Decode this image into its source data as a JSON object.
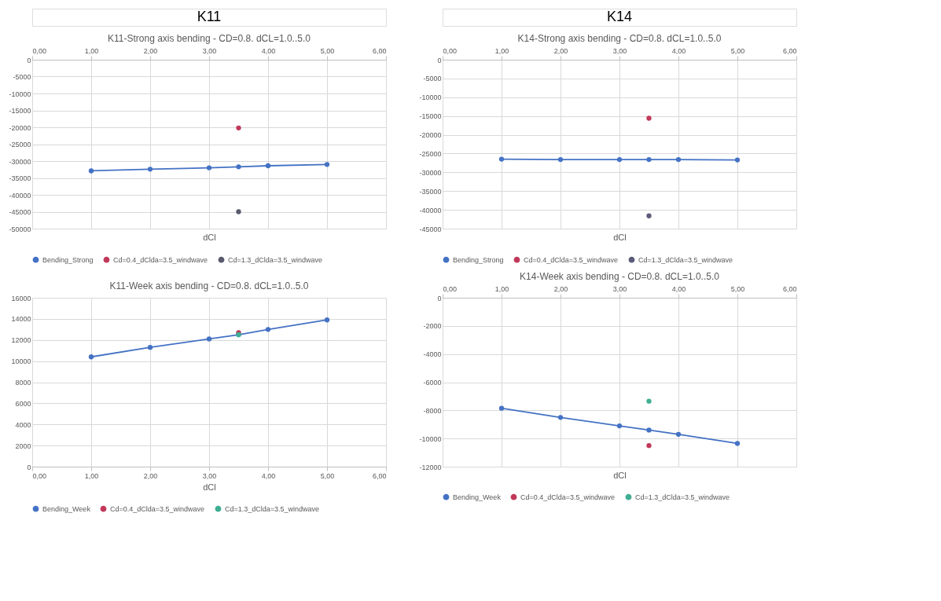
{
  "chart_data": [
    {
      "type": "line",
      "title": "K11-Strong axis bending - CD=0.8. dCL=1.0..5.0",
      "annotations": [
        "K11"
      ],
      "xlabel": "dCl",
      "xlim": [
        0,
        6
      ],
      "xticks": [
        {
          "value": 0,
          "label": "0,00"
        },
        {
          "value": 1,
          "label": "1,00"
        },
        {
          "value": 2,
          "label": "2,00"
        },
        {
          "value": 3,
          "label": "3,00"
        },
        {
          "value": 4,
          "label": "4,00"
        },
        {
          "value": 5,
          "label": "5,00"
        },
        {
          "value": 6,
          "label": "6,00"
        }
      ],
      "ylim": [
        -50000,
        0
      ],
      "yticks": [
        0,
        -5000,
        -10000,
        -15000,
        -20000,
        -25000,
        -30000,
        -35000,
        -40000,
        -45000,
        -50000
      ],
      "grid": true,
      "legend": "bottom",
      "marker": "circle",
      "series": [
        {
          "name": "Bending_Strong",
          "type": "line",
          "color": "#4472c4",
          "x": [
            1,
            2,
            3,
            3.5,
            4,
            5
          ],
          "values": [
            -32900,
            -32400,
            -32000,
            -31700,
            -31400,
            -31000
          ]
        },
        {
          "name": "Cd=0.4_dClda=3.5_windwave",
          "type": "scatter",
          "color": "#c0395a",
          "x": [
            3.5
          ],
          "values": [
            -20200
          ]
        },
        {
          "name": "Cd=1.3_dClda=3.5_windwave",
          "type": "scatter",
          "color": "#5a5a6e",
          "x": [
            3.5
          ],
          "values": [
            -45000
          ]
        }
      ]
    },
    {
      "type": "line",
      "title": "K14-Strong axis bending - CD=0.8. dCL=1.0..5.0",
      "annotations": [
        "K14"
      ],
      "xlabel": "dCl",
      "xlim": [
        0,
        6
      ],
      "xticks": [
        {
          "value": 0,
          "label": "0,00"
        },
        {
          "value": 1,
          "label": "1,00"
        },
        {
          "value": 2,
          "label": "2,00"
        },
        {
          "value": 3,
          "label": "3,00"
        },
        {
          "value": 4,
          "label": "4,00"
        },
        {
          "value": 5,
          "label": "5,00"
        },
        {
          "value": 6,
          "label": "6,00"
        }
      ],
      "ylim": [
        -45000,
        0
      ],
      "yticks": [
        0,
        -5000,
        -10000,
        -15000,
        -20000,
        -25000,
        -30000,
        -35000,
        -40000,
        -45000
      ],
      "grid": true,
      "legend": "bottom",
      "marker": "circle",
      "series": [
        {
          "name": "Bending_Strong",
          "type": "line",
          "color": "#4472c4",
          "x": [
            1,
            2,
            3,
            3.5,
            4,
            5
          ],
          "values": [
            -26500,
            -26600,
            -26600,
            -26600,
            -26600,
            -26700
          ]
        },
        {
          "name": "Cd=0.4_dClda=3.5_windwave",
          "type": "scatter",
          "color": "#c0395a",
          "x": [
            3.5
          ],
          "values": [
            -15600
          ]
        },
        {
          "name": "Cd=1.3_dClda=3.5_windwave",
          "type": "scatter",
          "color": "#5b5b7b",
          "x": [
            3.5
          ],
          "values": [
            -41600
          ]
        }
      ]
    },
    {
      "type": "line",
      "title": "K11-Week axis bending - CD=0.8. dCL=1.0..5.0",
      "xlabel": "dCl",
      "xlim": [
        0,
        6
      ],
      "xticks": [
        {
          "value": 0,
          "label": "0,00"
        },
        {
          "value": 1,
          "label": "1,00"
        },
        {
          "value": 2,
          "label": "2,00"
        },
        {
          "value": 3,
          "label": "3,00"
        },
        {
          "value": 4,
          "label": "4,00"
        },
        {
          "value": 5,
          "label": "5,00"
        },
        {
          "value": 6,
          "label": "6,00"
        }
      ],
      "ylim": [
        0,
        16000
      ],
      "yticks": [
        0,
        2000,
        4000,
        6000,
        8000,
        10000,
        12000,
        14000,
        16000
      ],
      "grid": true,
      "legend": "bottom",
      "marker": "circle",
      "series": [
        {
          "name": "Bending_Week",
          "type": "line",
          "color": "#4472c4",
          "x": [
            1,
            2,
            3,
            3.5,
            4,
            5
          ],
          "values": [
            10400,
            11300,
            12100,
            12500,
            13000,
            13900
          ]
        },
        {
          "name": "Cd=0.4_dClda=3.5_windwave",
          "type": "scatter",
          "color": "#c0395a",
          "x": [
            3.5
          ],
          "values": [
            12700
          ]
        },
        {
          "name": "Cd=1.3_dClda=3.5_windwave",
          "type": "scatter",
          "color": "#3fae92",
          "x": [
            3.5
          ],
          "values": [
            12500
          ]
        }
      ]
    },
    {
      "type": "line",
      "title": "K14-Week axis bending - CD=0.8. dCL=1.0..5.0",
      "xlabel": "dCl",
      "xlim": [
        0,
        6
      ],
      "xticks": [
        {
          "value": 0,
          "label": "0,00"
        },
        {
          "value": 1,
          "label": "1,00"
        },
        {
          "value": 2,
          "label": "2,00"
        },
        {
          "value": 3,
          "label": "3,00"
        },
        {
          "value": 4,
          "label": "4,00"
        },
        {
          "value": 5,
          "label": "5,00"
        },
        {
          "value": 6,
          "label": "6,00"
        }
      ],
      "ylim": [
        -12000,
        0
      ],
      "yticks": [
        0,
        -2000,
        -4000,
        -6000,
        -8000,
        -10000,
        -12000
      ],
      "grid": true,
      "legend": "bottom",
      "marker": "circle",
      "series": [
        {
          "name": "Bending_Week",
          "type": "line",
          "color": "#4472c4",
          "x": [
            1,
            2,
            3,
            3.5,
            4,
            5
          ],
          "values": [
            -7850,
            -8500,
            -9100,
            -9400,
            -9700,
            -10350
          ]
        },
        {
          "name": "Cd=0.4_dClda=3.5_windwave",
          "type": "scatter",
          "color": "#c0395a",
          "x": [
            3.5
          ],
          "values": [
            -10500
          ]
        },
        {
          "name": "Cd=1.3_dClda=3.5_windwave",
          "type": "scatter",
          "color": "#3fae92",
          "x": [
            3.5
          ],
          "values": [
            -7350
          ]
        }
      ]
    }
  ]
}
